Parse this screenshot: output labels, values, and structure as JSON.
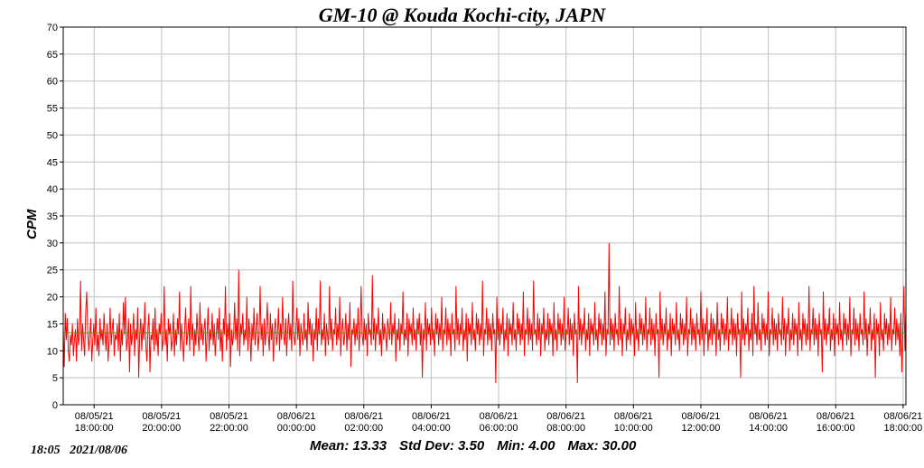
{
  "chart_data": {
    "type": "line",
    "title": "GM-10 @ Kouda Kochi-city, JAPN",
    "ylabel": "CPM",
    "xlabel": "",
    "ylim": [
      0,
      70
    ],
    "yticks": [
      0,
      5,
      10,
      15,
      20,
      25,
      30,
      35,
      40,
      45,
      50,
      55,
      60,
      65,
      70
    ],
    "grid": true,
    "x_range": [
      "08/05/21 17:05",
      "08/06/21 18:05"
    ],
    "xticks": [
      {
        "date": "08/05/21",
        "time": "18:00:00"
      },
      {
        "date": "08/05/21",
        "time": "20:00:00"
      },
      {
        "date": "08/05/21",
        "time": "22:00:00"
      },
      {
        "date": "08/06/21",
        "time": "00:00:00"
      },
      {
        "date": "08/06/21",
        "time": "02:00:00"
      },
      {
        "date": "08/06/21",
        "time": "04:00:00"
      },
      {
        "date": "08/06/21",
        "time": "06:00:00"
      },
      {
        "date": "08/06/21",
        "time": "08:00:00"
      },
      {
        "date": "08/06/21",
        "time": "10:00:00"
      },
      {
        "date": "08/06/21",
        "time": "12:00:00"
      },
      {
        "date": "08/06/21",
        "time": "14:00:00"
      },
      {
        "date": "08/06/21",
        "time": "16:00:00"
      },
      {
        "date": "08/06/21",
        "time": "18:00:00"
      }
    ],
    "series": [
      {
        "color": "#ff0000",
        "x_start": "08/05/21 17:05",
        "x_end": "08/06/21 18:05",
        "values": [
          14,
          7,
          17,
          12,
          16,
          10,
          8,
          13,
          11,
          15,
          9,
          12,
          14,
          8,
          16,
          11,
          13,
          23,
          10,
          15,
          12,
          9,
          17,
          21,
          14,
          10,
          13,
          16,
          8,
          12,
          15,
          11,
          18,
          10,
          13,
          9,
          16,
          12,
          14,
          11,
          17,
          13,
          10,
          15,
          8,
          12,
          18,
          11,
          14,
          16,
          9,
          13,
          12,
          15,
          10,
          17,
          8,
          14,
          11,
          19,
          13,
          20,
          10,
          12,
          16,
          6,
          15,
          11,
          13,
          17,
          9,
          14,
          12,
          18,
          5,
          13,
          16,
          10,
          15,
          12,
          19,
          11,
          8,
          14,
          17,
          6,
          13,
          12,
          16,
          10,
          18,
          11,
          14,
          9,
          15,
          13,
          17,
          10,
          12,
          22,
          11,
          14,
          8,
          16,
          13,
          15,
          10,
          12,
          17,
          9,
          14,
          11,
          16,
          13,
          21,
          10,
          15,
          12,
          8,
          14,
          18,
          11,
          13,
          16,
          10,
          22,
          12,
          15,
          9,
          14,
          11,
          17,
          13,
          10,
          19,
          12,
          15,
          11,
          14,
          16,
          8,
          13,
          18,
          10,
          14,
          12,
          17,
          11,
          15,
          9,
          13,
          16,
          12,
          18,
          10,
          14,
          8,
          16,
          13,
          22,
          10,
          15,
          12,
          17,
          7,
          14,
          11,
          13,
          19,
          12,
          16,
          10,
          25,
          9,
          15,
          13,
          17,
          11,
          14,
          12,
          20,
          10,
          16,
          13,
          8,
          15,
          12,
          18,
          11,
          14,
          17,
          10,
          13,
          22,
          12,
          15,
          9,
          16,
          11,
          14,
          19,
          13,
          10,
          17,
          12,
          15,
          8,
          14,
          16,
          11,
          13,
          18,
          10,
          15,
          12,
          20,
          13,
          11,
          16,
          9,
          14,
          17,
          12,
          15,
          10,
          23,
          13,
          11,
          14,
          18,
          12,
          16,
          9,
          15,
          13,
          11,
          17,
          12,
          14,
          10,
          19,
          13,
          16,
          11,
          15,
          8,
          14,
          12,
          18,
          10,
          16,
          13,
          23,
          11,
          14,
          12,
          17,
          9,
          15,
          13,
          11,
          22,
          12,
          16,
          10,
          14,
          13,
          18,
          11,
          15,
          12,
          20,
          9,
          14,
          16,
          11,
          13,
          17,
          10,
          15,
          12,
          19,
          7,
          14,
          13,
          16,
          11,
          15,
          12,
          18,
          10,
          14,
          22,
          13,
          11,
          16,
          12,
          15,
          9,
          17,
          13,
          14,
          11,
          24,
          12,
          16,
          10,
          15,
          13,
          18,
          11,
          14,
          9,
          17,
          12,
          15,
          13,
          10,
          16,
          14,
          12,
          19,
          11,
          15,
          13,
          17,
          8,
          14,
          12,
          16,
          10,
          15,
          13,
          21,
          11,
          14,
          12,
          17,
          9,
          16,
          13,
          15,
          11,
          18,
          12,
          14,
          10,
          16,
          13,
          17,
          11,
          15,
          5,
          14,
          12,
          19,
          10,
          16,
          13,
          15,
          11,
          18,
          12,
          14,
          9,
          17,
          13,
          16,
          11,
          15,
          12,
          20,
          10,
          14,
          13,
          18,
          11,
          16,
          12,
          15,
          9,
          17,
          13,
          14,
          10,
          22,
          12,
          16,
          11,
          15,
          13,
          18,
          10,
          14,
          12,
          17,
          8,
          16,
          13,
          15,
          11,
          19,
          12,
          14,
          10,
          17,
          13,
          16,
          11,
          15,
          12,
          23,
          9,
          14,
          13,
          18,
          11,
          16,
          12,
          15,
          10,
          17,
          13,
          14,
          4,
          20,
          12,
          16,
          11,
          15,
          13,
          18,
          10,
          14,
          12,
          17,
          9,
          16,
          13,
          15,
          11,
          19,
          12,
          14,
          10,
          17,
          13,
          16,
          11,
          15,
          12,
          21,
          9,
          14,
          13,
          18,
          11,
          16,
          12,
          15,
          10,
          23,
          13,
          14,
          11,
          17,
          12,
          16,
          9,
          15,
          13,
          18,
          10,
          14,
          12,
          17,
          11,
          16,
          13,
          15,
          9,
          19,
          12,
          14,
          10,
          17,
          13,
          16,
          11,
          15,
          12,
          20,
          10,
          14,
          13,
          18,
          11,
          16,
          12,
          15,
          9,
          17,
          13,
          14,
          4,
          22,
          12,
          16,
          11,
          15,
          13,
          18,
          10,
          14,
          12,
          17,
          9,
          16,
          13,
          15,
          11,
          19,
          12,
          14,
          10,
          17,
          13,
          16,
          11,
          15,
          12,
          21,
          9,
          14,
          13,
          30,
          11,
          16,
          12,
          15,
          10,
          17,
          13,
          14,
          11,
          22,
          12,
          16,
          9,
          15,
          13,
          18,
          10,
          14,
          12,
          17,
          11,
          16,
          13,
          15,
          9,
          19,
          12,
          14,
          10,
          17,
          13,
          16,
          11,
          15,
          12,
          20,
          10,
          14,
          13,
          18,
          11,
          16,
          12,
          15,
          9,
          17,
          13,
          14,
          5,
          21,
          12,
          16,
          11,
          15,
          13,
          18,
          10,
          14,
          12,
          17,
          9,
          16,
          13,
          15,
          11,
          19,
          12,
          14,
          10,
          17,
          13,
          16,
          11,
          15,
          12,
          20,
          9,
          14,
          13,
          18,
          11,
          16,
          12,
          15,
          10,
          17,
          13,
          14,
          11,
          21,
          12,
          16,
          9,
          15,
          13,
          18,
          10,
          14,
          12,
          17,
          11,
          16,
          13,
          15,
          9,
          19,
          12,
          14,
          10,
          17,
          13,
          16,
          11,
          15,
          12,
          20,
          10,
          14,
          13,
          18,
          11,
          16,
          12,
          15,
          9,
          17,
          13,
          14,
          5,
          21,
          12,
          16,
          11,
          15,
          13,
          18,
          10,
          14,
          12,
          17,
          9,
          22,
          13,
          15,
          11,
          19,
          12,
          14,
          10,
          17,
          13,
          16,
          11,
          15,
          12,
          21,
          9,
          14,
          13,
          18,
          11,
          16,
          12,
          15,
          10,
          17,
          13,
          14,
          11,
          20,
          12,
          16,
          9,
          15,
          13,
          18,
          10,
          14,
          12,
          17,
          11,
          16,
          13,
          15,
          9,
          19,
          12,
          14,
          10,
          17,
          13,
          16,
          11,
          15,
          12,
          22,
          10,
          14,
          13,
          18,
          11,
          16,
          12,
          15,
          9,
          17,
          13,
          14,
          6,
          21,
          12,
          16,
          11,
          15,
          13,
          18,
          10,
          14,
          12,
          17,
          9,
          16,
          13,
          15,
          11,
          19,
          12,
          14,
          10,
          17,
          13,
          16,
          11,
          15,
          12,
          20,
          9,
          14,
          13,
          18,
          11,
          16,
          12,
          15,
          10,
          17,
          13,
          14,
          11,
          21,
          12,
          16,
          9,
          15,
          13,
          18,
          10,
          14,
          12,
          17,
          5,
          16,
          13,
          15,
          9,
          19,
          12,
          14,
          10,
          17,
          13,
          16,
          11,
          15,
          12,
          20,
          10,
          14,
          13,
          18,
          11,
          16,
          12,
          15,
          9,
          17,
          6,
          14,
          22,
          10,
          18
        ]
      },
      {
        "name": "",
        "color": "#808000",
        "constant": 13.33
      }
    ]
  },
  "footer": {
    "timestamp": "18:05   2021/08/06",
    "mean": "Mean: 13.33",
    "std_dev": "Std Dev: 3.50",
    "min": "Min: 4.00",
    "max": "Max: 30.00"
  }
}
